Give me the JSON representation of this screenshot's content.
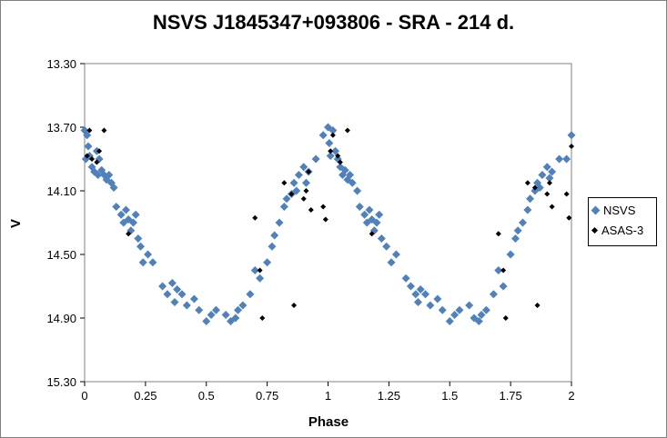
{
  "colors": {
    "nsvs": "#4F81BD",
    "asas": "#000000"
  },
  "chart_data": {
    "type": "scatter",
    "title": "NSVS J1845347+093806  - SRA - 214 d.",
    "xlabel": "Phase",
    "ylabel": "V",
    "xlim": [
      0,
      2
    ],
    "ylim": [
      13.3,
      15.3
    ],
    "y_inverted": true,
    "grid": false,
    "legend_position": "right",
    "x_ticks": [
      0,
      0.25,
      0.5,
      0.75,
      1,
      1.25,
      1.5,
      1.75,
      2
    ],
    "x_tick_labels": [
      "0",
      "0.25",
      "0.5",
      "0.75",
      "1",
      "1.25",
      "1.5",
      "1.75",
      "2"
    ],
    "y_ticks": [
      13.3,
      13.7,
      14.1,
      14.5,
      14.9,
      15.3
    ],
    "y_tick_labels": [
      "13.30",
      "13.70",
      "14.10",
      "14.50",
      "14.90",
      "15.30"
    ],
    "series": [
      {
        "name": "NSVS",
        "marker": "diamond",
        "x": [
          0.0,
          0.005,
          0.01,
          0.015,
          0.02,
          0.03,
          0.04,
          0.05,
          0.055,
          0.06,
          0.07,
          0.08,
          0.09,
          0.1,
          0.11,
          0.12,
          0.13,
          0.15,
          0.16,
          0.17,
          0.18,
          0.19,
          0.2,
          0.21,
          0.22,
          0.23,
          0.24,
          0.26,
          0.28,
          0.32,
          0.34,
          0.36,
          0.37,
          0.38,
          0.4,
          0.42,
          0.45,
          0.47,
          0.5,
          0.52,
          0.54,
          0.58,
          0.6,
          0.62,
          0.63,
          0.65,
          0.68,
          0.7,
          0.72,
          0.75,
          0.77,
          0.78,
          0.8,
          0.82,
          0.83,
          0.85,
          0.86,
          0.87,
          0.88,
          0.9,
          0.91,
          0.92,
          0.95,
          0.98,
          1.0,
          1.005,
          1.01,
          1.02,
          1.03,
          1.04,
          1.05,
          1.06,
          1.07,
          1.08,
          1.09,
          1.1,
          1.12,
          1.13,
          1.15,
          1.16,
          1.17,
          1.18,
          1.19,
          1.2,
          1.21,
          1.22,
          1.24,
          1.26,
          1.28,
          1.32,
          1.34,
          1.36,
          1.37,
          1.38,
          1.4,
          1.42,
          1.45,
          1.47,
          1.5,
          1.52,
          1.54,
          1.58,
          1.6,
          1.62,
          1.63,
          1.65,
          1.68,
          1.7,
          1.72,
          1.75,
          1.77,
          1.78,
          1.8,
          1.82,
          1.83,
          1.85,
          1.86,
          1.87,
          1.88,
          1.9,
          1.91,
          1.92,
          1.95,
          1.98,
          2.0
        ],
        "y": [
          13.72,
          13.9,
          13.75,
          13.82,
          13.88,
          13.95,
          13.98,
          13.85,
          14.0,
          13.9,
          13.97,
          14.0,
          14.03,
          14.0,
          14.05,
          14.08,
          14.2,
          14.25,
          14.3,
          14.22,
          14.28,
          14.35,
          14.3,
          14.25,
          14.4,
          14.45,
          14.55,
          14.5,
          14.55,
          14.7,
          14.75,
          14.68,
          14.8,
          14.72,
          14.75,
          14.82,
          14.78,
          14.85,
          14.92,
          14.88,
          14.85,
          14.88,
          14.92,
          14.9,
          14.85,
          14.82,
          14.75,
          14.6,
          14.65,
          14.55,
          14.45,
          14.38,
          14.3,
          14.2,
          14.15,
          14.12,
          14.05,
          14.1,
          14.0,
          13.95,
          14.05,
          13.98,
          13.9,
          13.75,
          13.7,
          13.8,
          13.88,
          13.72,
          13.85,
          13.9,
          13.95,
          14.0,
          13.97,
          14.03,
          14.0,
          14.05,
          14.1,
          14.2,
          14.25,
          14.3,
          14.22,
          14.28,
          14.35,
          14.3,
          14.25,
          14.4,
          14.45,
          14.55,
          14.5,
          14.65,
          14.7,
          14.75,
          14.8,
          14.72,
          14.75,
          14.82,
          14.78,
          14.85,
          14.92,
          14.88,
          14.85,
          14.82,
          14.9,
          14.92,
          14.88,
          14.85,
          14.75,
          14.6,
          14.7,
          14.5,
          14.4,
          14.35,
          14.3,
          14.22,
          14.15,
          14.1,
          14.05,
          14.08,
          14.0,
          13.95,
          14.02,
          13.98,
          13.9,
          13.9,
          13.75
        ],
        "color": "#4F81BD"
      },
      {
        "name": "ASAS-3",
        "marker": "diamond-small",
        "x": [
          0.01,
          0.02,
          0.03,
          0.05,
          0.06,
          0.08,
          0.18,
          0.7,
          0.72,
          0.73,
          0.86,
          0.82,
          0.85,
          0.9,
          0.91,
          0.92,
          0.93,
          0.98,
          0.99,
          1.01,
          1.02,
          1.04,
          1.05,
          1.08,
          1.18,
          1.7,
          1.72,
          1.73,
          1.86,
          1.82,
          1.85,
          1.9,
          1.91,
          1.92,
          1.98,
          1.99,
          2.0
        ],
        "y": [
          13.88,
          13.72,
          13.9,
          13.92,
          13.85,
          13.72,
          14.37,
          14.27,
          14.6,
          14.9,
          14.82,
          14.05,
          14.12,
          14.15,
          14.1,
          13.98,
          14.22,
          14.2,
          14.28,
          13.85,
          13.75,
          13.88,
          13.92,
          13.72,
          14.37,
          14.37,
          14.6,
          14.9,
          14.82,
          14.05,
          14.08,
          14.12,
          14.05,
          14.2,
          14.12,
          14.27,
          13.82
        ],
        "color": "#000000"
      }
    ]
  }
}
